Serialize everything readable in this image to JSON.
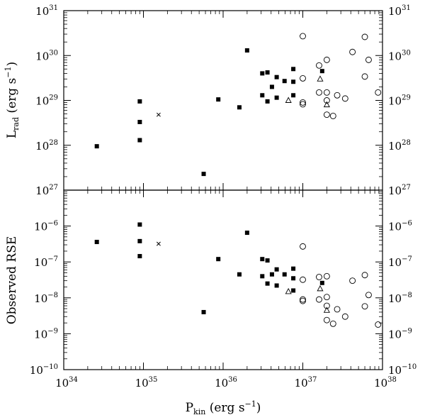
{
  "chart_data": [
    {
      "type": "scatter",
      "panel": "top",
      "ylabel_main": "L",
      "ylabel_sub": "rad",
      "ylabel_unit": "(erg s",
      "ylabel_unit_exp": "−1",
      "ylabel_unit_close": ")",
      "xscale": "log",
      "yscale": "log",
      "xlim": [
        1e+34,
        1e+38
      ],
      "ylim": [
        1e+27,
        1e+31
      ],
      "ytick_exponents": [
        27,
        28,
        29,
        30,
        31
      ],
      "series": [
        {
          "marker": "filled-square",
          "points": [
            [
              2.6e+34,
              9.5e+27
            ],
            [
              9e+34,
              9.5e+28
            ],
            [
              9e+34,
              3.3e+28
            ],
            [
              9e+34,
              1.3e+28
            ],
            [
              5.7e+35,
              2.3e+27
            ],
            [
              8.7e+35,
              1.05e+29
            ],
            [
              1.6e+36,
              7e+28
            ],
            [
              2e+36,
              1.3e+30
            ],
            [
              3.1e+36,
              4e+29
            ],
            [
              3.1e+36,
              1.3e+29
            ],
            [
              3.6e+36,
              4.2e+29
            ],
            [
              3.6e+36,
              9.5e+28
            ],
            [
              4.1e+36,
              2e+29
            ],
            [
              4.7e+36,
              3.3e+29
            ],
            [
              4.7e+36,
              1.15e+29
            ],
            [
              5.9e+36,
              2.7e+29
            ],
            [
              7.6e+36,
              5e+29
            ],
            [
              7.6e+36,
              2.6e+29
            ],
            [
              7.6e+36,
              1.3e+29
            ],
            [
              1.75e+37,
              4.5e+29
            ]
          ]
        },
        {
          "marker": "cross",
          "points": [
            [
              1.55e+35,
              4.8e+28
            ]
          ]
        },
        {
          "marker": "open-triangle",
          "points": [
            [
              6.6e+36,
              1e+29
            ],
            [
              1.65e+37,
              3e+29
            ],
            [
              2e+37,
              8e+28
            ]
          ]
        },
        {
          "marker": "open-circle",
          "points": [
            [
              1e+37,
              2.7e+30
            ],
            [
              1e+37,
              9e+28
            ],
            [
              1e+37,
              8.2e+28
            ],
            [
              1e+37,
              3.1e+29
            ],
            [
              1.6e+37,
              6e+29
            ],
            [
              1.6e+37,
              1.5e+29
            ],
            [
              2e+37,
              8e+29
            ],
            [
              2e+37,
              1.5e+29
            ],
            [
              2e+37,
              1e+29
            ],
            [
              2e+37,
              4.8e+28
            ],
            [
              2.4e+37,
              4.5e+28
            ],
            [
              2.7e+37,
              1.3e+29
            ],
            [
              3.4e+37,
              1.1e+29
            ],
            [
              4.2e+37,
              1.2e+30
            ],
            [
              6e+37,
              2.6e+30
            ],
            [
              6e+37,
              3.4e+29
            ],
            [
              6.7e+37,
              8e+29
            ],
            [
              8.8e+37,
              1.5e+29
            ]
          ]
        }
      ]
    },
    {
      "type": "scatter",
      "panel": "bottom",
      "ylabel": "Observed RSE",
      "xlabel_main": "P",
      "xlabel_sub": "kin",
      "xlabel_unit": "(erg s",
      "xlabel_unit_exp": "−1",
      "xlabel_unit_close": ")",
      "xscale": "log",
      "yscale": "log",
      "xlim": [
        1e+34,
        1e+38
      ],
      "ylim": [
        1e-10,
        1e-05
      ],
      "xtick_exponents": [
        34,
        35,
        36,
        37,
        38
      ],
      "ytick_exponents": [
        -10,
        -9,
        -8,
        -7,
        -6
      ],
      "series": [
        {
          "marker": "filled-square",
          "points": [
            [
              2.6e+34,
              3.6e-07
            ],
            [
              9e+34,
              1.1e-06
            ],
            [
              9e+34,
              3.8e-07
            ],
            [
              9e+34,
              1.45e-07
            ],
            [
              5.7e+35,
              4e-09
            ],
            [
              8.7e+35,
              1.2e-07
            ],
            [
              1.6e+36,
              4.5e-08
            ],
            [
              2e+36,
              6.5e-07
            ],
            [
              3.1e+36,
              1.2e-07
            ],
            [
              3.1e+36,
              4e-08
            ],
            [
              3.6e+36,
              1.1e-07
            ],
            [
              3.6e+36,
              2.5e-08
            ],
            [
              4.1e+36,
              4.5e-08
            ],
            [
              4.7e+36,
              6.2e-08
            ],
            [
              4.7e+36,
              2.2e-08
            ],
            [
              5.9e+36,
              4.5e-08
            ],
            [
              7.6e+36,
              6.5e-08
            ],
            [
              7.6e+36,
              3.5e-08
            ],
            [
              7.6e+36,
              1.6e-08
            ],
            [
              1.75e+37,
              2.6e-08
            ]
          ]
        },
        {
          "marker": "cross",
          "points": [
            [
              1.55e+35,
              3.2e-07
            ]
          ]
        },
        {
          "marker": "open-triangle",
          "points": [
            [
              6.6e+36,
              1.5e-08
            ],
            [
              1.65e+37,
              1.8e-08
            ],
            [
              2e+37,
              4.5e-09
            ]
          ]
        },
        {
          "marker": "open-circle",
          "points": [
            [
              1e+37,
              2.7e-07
            ],
            [
              1e+37,
              9e-09
            ],
            [
              1e+37,
              8.2e-09
            ],
            [
              1e+37,
              3.2e-08
            ],
            [
              1.6e+37,
              3.8e-08
            ],
            [
              1.6e+37,
              9e-09
            ],
            [
              2e+37,
              4e-08
            ],
            [
              2e+37,
              1.05e-08
            ],
            [
              2e+37,
              6e-09
            ],
            [
              2e+37,
              2.4e-09
            ],
            [
              2.4e+37,
              1.9e-09
            ],
            [
              2.7e+37,
              4.8e-09
            ],
            [
              3.4e+37,
              3e-09
            ],
            [
              4.2e+37,
              3e-08
            ],
            [
              6e+37,
              4.3e-08
            ],
            [
              6e+37,
              5.8e-09
            ],
            [
              6.7e+37,
              1.2e-08
            ],
            [
              8.8e+37,
              1.8e-09
            ]
          ]
        }
      ]
    }
  ]
}
